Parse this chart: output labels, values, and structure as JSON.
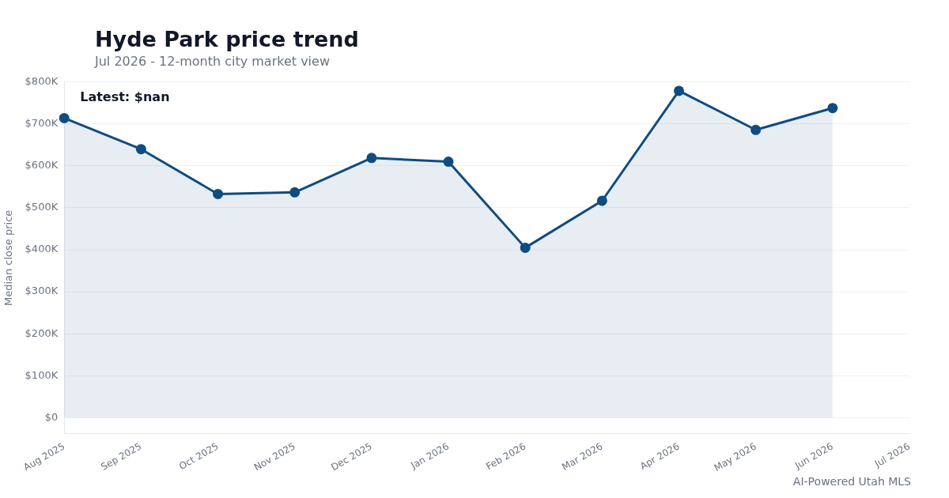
{
  "chart_data": {
    "type": "area",
    "title": "Hyde Park price trend",
    "subtitle": "Jul 2026 - 12-month city market view",
    "ylabel": "Median close price",
    "categories": [
      "Aug 2025",
      "Sep 2025",
      "Oct 2025",
      "Nov 2025",
      "Dec 2025",
      "Jan 2026",
      "Feb 2026",
      "Mar 2026",
      "Apr 2026",
      "May 2026",
      "Jun 2026",
      "Jul 2026"
    ],
    "series": [
      {
        "color": "#0f4c81",
        "values": [
          714000,
          640000,
          533000,
          537000,
          619000,
          610000,
          405000,
          517000,
          779000,
          686000,
          738000,
          null
        ]
      }
    ],
    "ylim": [
      -39000,
      800000
    ],
    "yticks": [
      {
        "value": 0,
        "label": "$0"
      },
      {
        "value": 100000,
        "label": "$100K"
      },
      {
        "value": 200000,
        "label": "$200K"
      },
      {
        "value": 300000,
        "label": "$300K"
      },
      {
        "value": 400000,
        "label": "$400K"
      },
      {
        "value": 500000,
        "label": "$500K"
      },
      {
        "value": 600000,
        "label": "$600K"
      },
      {
        "value": 700000,
        "label": "$700K"
      },
      {
        "value": 800000,
        "label": "$800K"
      }
    ],
    "grid": "y",
    "marker": "circle",
    "line_style": "solid",
    "legend": false,
    "annotations": [
      "Latest: $nan",
      "AI-Powered Utah MLS"
    ]
  }
}
